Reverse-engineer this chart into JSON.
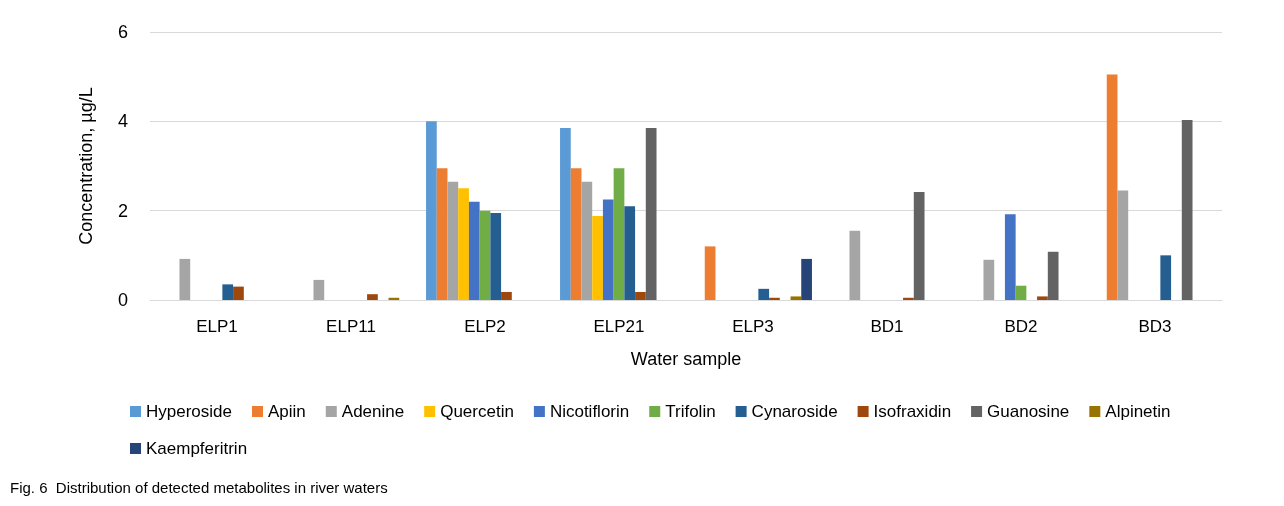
{
  "chart_data": {
    "type": "bar",
    "xlabel": "Water sample",
    "ylabel": "Concentration, µg/L",
    "annotations": [
      "Fig. 6  Distribution of detected metabolites in river waters"
    ],
    "categories": [
      "ELP1",
      "ELP11",
      "ELP2",
      "ELP21",
      "ELP3",
      "BD1",
      "BD2",
      "BD3"
    ],
    "series": [
      {
        "name": "Hyperoside",
        "color": "#5b9bd5",
        "values": [
          0,
          0,
          4.0,
          3.85,
          0,
          0,
          0,
          0
        ]
      },
      {
        "name": "Apiin",
        "color": "#ed7d31",
        "values": [
          0,
          0,
          2.95,
          2.95,
          1.2,
          0,
          0,
          5.05
        ]
      },
      {
        "name": "Adenine",
        "color": "#a5a5a5",
        "values": [
          0.92,
          0.45,
          2.65,
          2.65,
          0,
          1.55,
          0.9,
          2.45
        ]
      },
      {
        "name": "Quercetin",
        "color": "#ffc000",
        "values": [
          0,
          0,
          2.5,
          1.88,
          0,
          0,
          0,
          0
        ]
      },
      {
        "name": "Nicotiflorin",
        "color": "#4472c4",
        "values": [
          0,
          0,
          2.2,
          2.25,
          0,
          0,
          1.92,
          0
        ]
      },
      {
        "name": "Trifolin",
        "color": "#70ad47",
        "values": [
          0,
          0,
          2.0,
          2.95,
          0,
          0,
          0.32,
          0
        ]
      },
      {
        "name": "Cynaroside",
        "color": "#255e91",
        "values": [
          0.35,
          0,
          1.95,
          2.1,
          0.25,
          0,
          0,
          1.0
        ]
      },
      {
        "name": "Isofraxidin",
        "color": "#9e480e",
        "values": [
          0.3,
          0.13,
          0.18,
          0.18,
          0.05,
          0.05,
          0.08,
          0
        ]
      },
      {
        "name": "Guanosine",
        "color": "#636363",
        "values": [
          0,
          0,
          0,
          3.85,
          0,
          2.42,
          1.08,
          4.03
        ]
      },
      {
        "name": "Alpinetin",
        "color": "#997300",
        "values": [
          0,
          0.05,
          0,
          0,
          0.08,
          0,
          0,
          0
        ]
      },
      {
        "name": "Kaempferitrin",
        "color": "#264478",
        "values": [
          0,
          0,
          0,
          0,
          0.92,
          0,
          0,
          0
        ]
      }
    ],
    "ylim": [
      0,
      6
    ],
    "yticks": [
      0,
      2,
      4,
      6
    ],
    "grid": "y",
    "legend": "bottom"
  }
}
